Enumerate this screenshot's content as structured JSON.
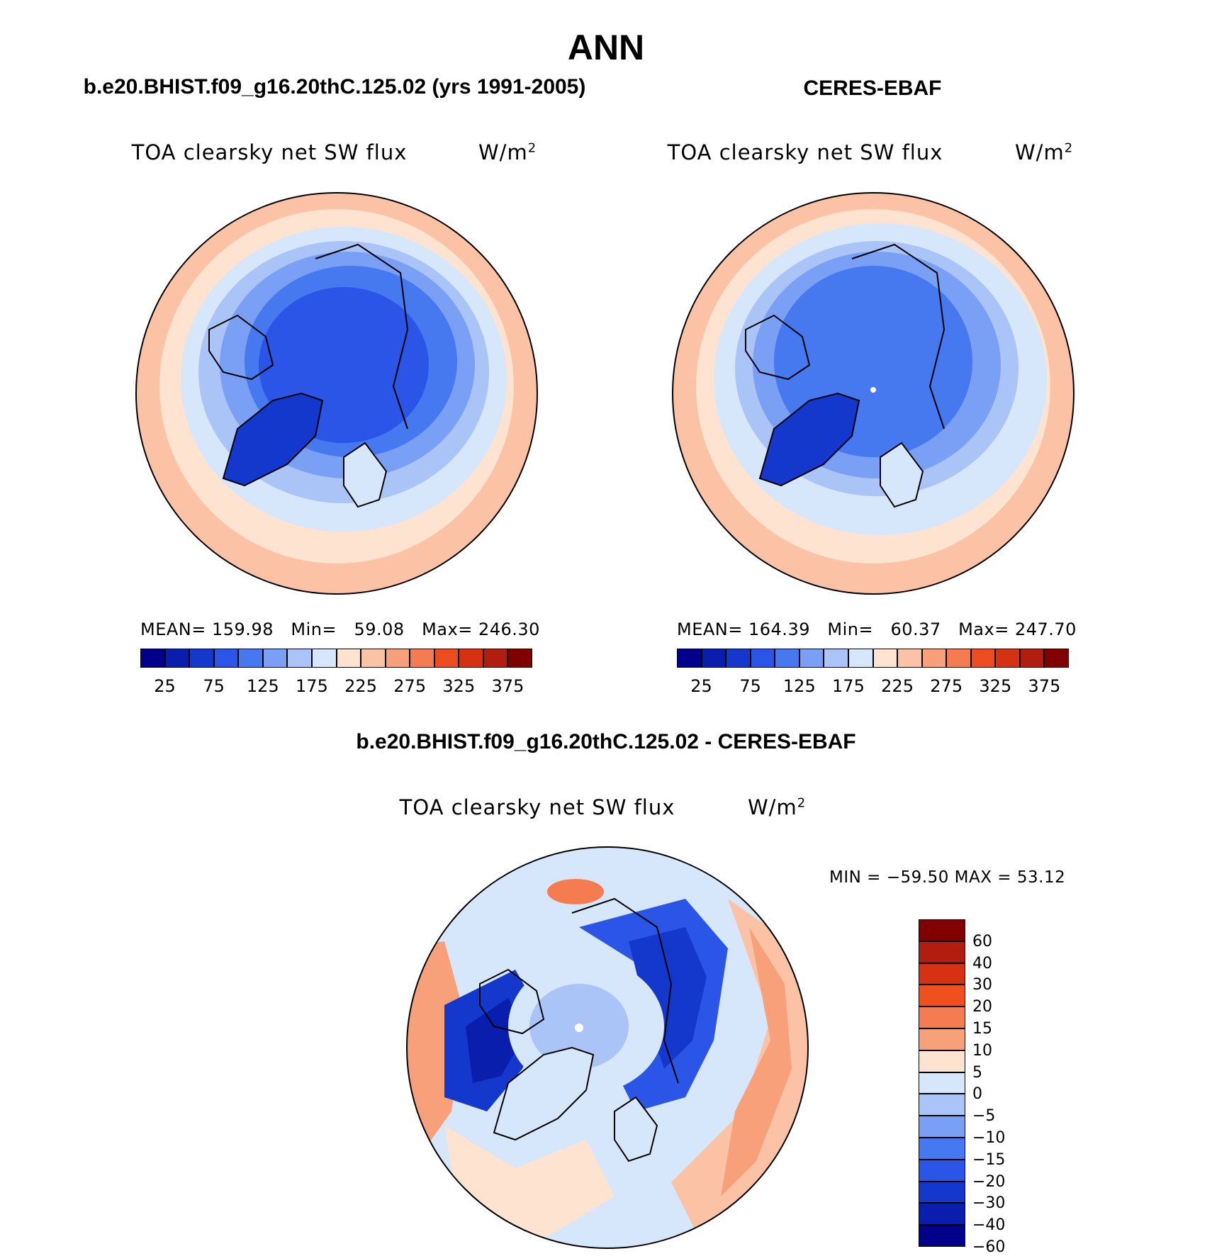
{
  "main_title": "ANN",
  "panels": [
    {
      "case_title": "b.e20.BHIST.f09_g16.20thC.125.02 (yrs 1991-2005)",
      "var_label": "TOA clearsky net SW flux",
      "units": "W/m",
      "units_sup": "2",
      "stats": {
        "mean_label": "MEAN=",
        "mean": "159.98",
        "min_label": "Min=",
        "min": "59.08",
        "max_label": "Max=",
        "max": "246.30"
      }
    },
    {
      "case_title": "CERES-EBAF",
      "var_label": "TOA clearsky net SW flux",
      "units": "W/m",
      "units_sup": "2",
      "stats": {
        "mean_label": "MEAN=",
        "mean": "164.39",
        "min_label": "Min=",
        "min": "60.37",
        "max_label": "Max=",
        "max": "247.70"
      }
    }
  ],
  "diff_panel": {
    "title": "b.e20.BHIST.f09_g16.20thC.125.02 - CERES-EBAF",
    "var_label": "TOA clearsky net SW flux",
    "units": "W/m",
    "units_sup": "2",
    "minmax": "MIN = −59.50 MAX =  53.12"
  },
  "abs_colorbar": {
    "colors": [
      "#00008b",
      "#0a1eae",
      "#1538cc",
      "#2a55e6",
      "#4678f0",
      "#7aa0f5",
      "#abc4f7",
      "#d6e6fb",
      "#fde3d0",
      "#fbc2a5",
      "#f8a07a",
      "#f57b50",
      "#ec4e22",
      "#d43213",
      "#b11d0e",
      "#800000"
    ],
    "labels": [
      "25",
      "75",
      "125",
      "175",
      "225",
      "275",
      "325",
      "375"
    ]
  },
  "diff_colorbar": {
    "colors": [
      "#800000",
      "#b11d0e",
      "#d43213",
      "#f0501e",
      "#f57b50",
      "#f8a07a",
      "#fde3d0",
      "#d6e6fb",
      "#abc4f7",
      "#7aa0f5",
      "#4678f0",
      "#2a55e6",
      "#1538cc",
      "#0a1eae",
      "#00008b"
    ],
    "labels": [
      "60",
      "40",
      "30",
      "20",
      "15",
      "10",
      "5",
      "0",
      "−5",
      "−10",
      "−15",
      "−20",
      "−30",
      "−40",
      "−60"
    ]
  }
}
